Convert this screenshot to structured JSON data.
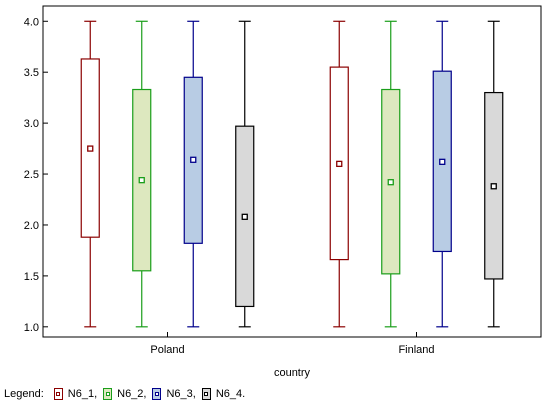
{
  "chart_data": {
    "type": "boxplot",
    "categories": [
      "Poland",
      "Finland"
    ],
    "xlabel": "country",
    "ylabel": "",
    "ylim": [
      0.9,
      4.15
    ],
    "yticks": [
      "1.0",
      "1.5",
      "2.0",
      "2.5",
      "3.0",
      "3.5",
      "4.0"
    ],
    "grid": false,
    "legend_position": "bottom-left",
    "legend_prefix": "Legend:",
    "series": [
      {
        "name": "N6_1,",
        "stroke": "#8b0000",
        "fill": "#ffffff",
        "marker": "#8b0000",
        "stats": [
          {
            "min": 1.0,
            "q1": 1.88,
            "median": 2.75,
            "q3": 3.63,
            "max": 4.0
          },
          {
            "min": 1.0,
            "q1": 1.66,
            "median": 2.6,
            "q3": 3.55,
            "max": 4.0
          }
        ]
      },
      {
        "name": "N6_2,",
        "stroke": "#1a9e1a",
        "fill": "#dde8bf",
        "marker": "#1a9e1a",
        "stats": [
          {
            "min": 1.0,
            "q1": 1.55,
            "median": 2.44,
            "q3": 3.33,
            "max": 4.0
          },
          {
            "min": 1.0,
            "q1": 1.52,
            "median": 2.42,
            "q3": 3.33,
            "max": 4.0
          }
        ]
      },
      {
        "name": "N6_3,",
        "stroke": "#00008b",
        "fill": "#b8cce4",
        "marker": "#00008b",
        "stats": [
          {
            "min": 1.0,
            "q1": 1.82,
            "median": 2.64,
            "q3": 3.45,
            "max": 4.0
          },
          {
            "min": 1.0,
            "q1": 1.74,
            "median": 2.62,
            "q3": 3.51,
            "max": 4.0
          }
        ]
      },
      {
        "name": "N6_4.",
        "stroke": "#000000",
        "fill": "#d9d9d9",
        "marker": "#000000",
        "stats": [
          {
            "min": 1.0,
            "q1": 1.2,
            "median": 2.08,
            "q3": 2.97,
            "max": 4.0
          },
          {
            "min": 1.0,
            "q1": 1.47,
            "median": 2.38,
            "q3": 3.3,
            "max": 4.0
          }
        ]
      }
    ]
  }
}
